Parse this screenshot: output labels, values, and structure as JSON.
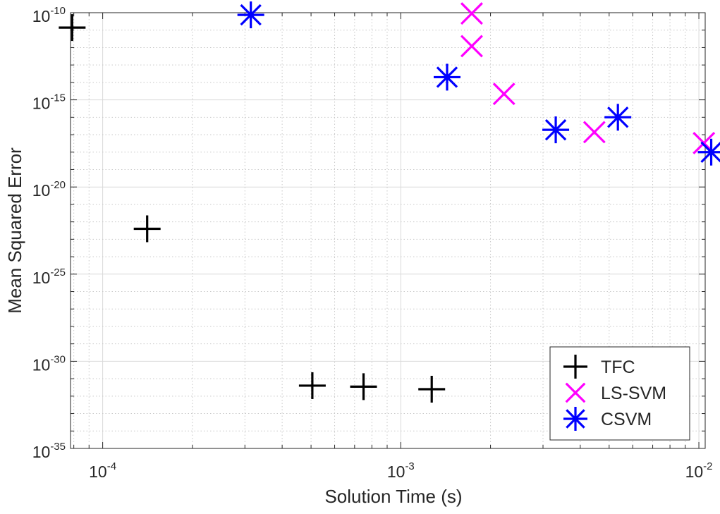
{
  "chart_data": {
    "type": "scatter",
    "title": "",
    "xlabel": "Solution Time (s)",
    "ylabel": "Mean Squared Error",
    "xscale": "log",
    "yscale": "log",
    "xlim": [
      7.8e-05,
      0.0105
    ],
    "ylim": [
      1e-35,
      1e-10
    ],
    "x_ticks": [
      {
        "base": "10",
        "exp": "-4",
        "value": 0.0001
      },
      {
        "base": "10",
        "exp": "-3",
        "value": 0.001
      },
      {
        "base": "10",
        "exp": "-2",
        "value": 0.01
      }
    ],
    "y_ticks": [
      {
        "base": "10",
        "exp": "-10",
        "value": 1e-10
      },
      {
        "base": "10",
        "exp": "-15",
        "value": 1e-15
      },
      {
        "base": "10",
        "exp": "-20",
        "value": 1e-20
      },
      {
        "base": "10",
        "exp": "-25",
        "value": 1e-25
      },
      {
        "base": "10",
        "exp": "-30",
        "value": 1e-30
      },
      {
        "base": "10",
        "exp": "-35",
        "value": 1e-35
      }
    ],
    "grid": true,
    "minor_grid": true,
    "legend_position": "bottom-right",
    "series": [
      {
        "name": "TFC",
        "marker": "plus",
        "color": "#000000",
        "points": [
          {
            "x": 7.9e-05,
            "y": 1.4e-11
          },
          {
            "x": 0.000141,
            "y": 4e-23
          },
          {
            "x": 0.000505,
            "y": 4e-32
          },
          {
            "x": 0.00075,
            "y": 3.5e-32
          },
          {
            "x": 0.00127,
            "y": 2.5e-32
          }
        ]
      },
      {
        "name": "LS-SVM",
        "marker": "x",
        "color": "#ff00ff",
        "points": [
          {
            "x": 0.00173,
            "y": 9e-11
          },
          {
            "x": 0.00173,
            "y": 1.2e-12
          },
          {
            "x": 0.00222,
            "y": 2.2e-15
          },
          {
            "x": 0.00446,
            "y": 1.4e-17
          },
          {
            "x": 0.0104,
            "y": 3.3e-18
          }
        ]
      },
      {
        "name": "CSVM",
        "marker": "asterisk",
        "color": "#0000ff",
        "points": [
          {
            "x": 0.000314,
            "y": 7.5e-11
          },
          {
            "x": 0.00143,
            "y": 2e-14
          },
          {
            "x": 0.00331,
            "y": 1.9e-17
          },
          {
            "x": 0.00535,
            "y": 1e-16
          },
          {
            "x": 0.011,
            "y": 1e-18
          }
        ]
      }
    ]
  }
}
